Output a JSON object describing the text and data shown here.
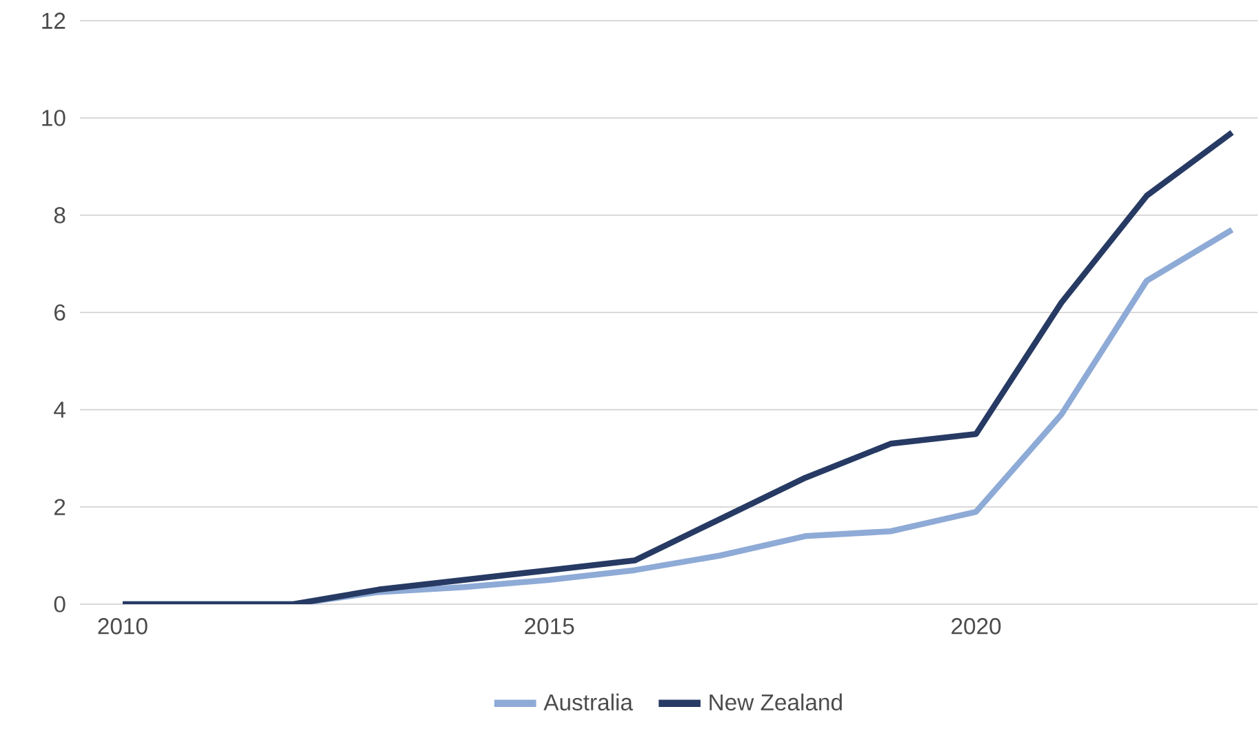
{
  "chart_data": {
    "type": "line",
    "x": [
      2010,
      2011,
      2012,
      2013,
      2014,
      2015,
      2016,
      2017,
      2018,
      2019,
      2020,
      2021,
      2022,
      2023
    ],
    "series": [
      {
        "name": "Australia",
        "color": "#8eaad6",
        "values": [
          0,
          0,
          0,
          0.25,
          0.35,
          0.5,
          0.7,
          1.0,
          1.4,
          1.5,
          1.9,
          3.9,
          6.65,
          7.7
        ]
      },
      {
        "name": "New Zealand",
        "color": "#263a63",
        "values": [
          0,
          0,
          0,
          0.3,
          0.5,
          0.7,
          0.9,
          1.75,
          2.6,
          3.3,
          3.5,
          6.2,
          8.4,
          9.7
        ]
      }
    ],
    "xlim": [
      2009.5,
      2023.3
    ],
    "xticks": [
      2010,
      2015,
      2020
    ],
    "ylim": [
      0,
      12
    ],
    "yticks": [
      0,
      2,
      4,
      6,
      8,
      10,
      12
    ],
    "grid": "y",
    "legend": "bottom",
    "marker": "none",
    "line_style": "solid"
  }
}
